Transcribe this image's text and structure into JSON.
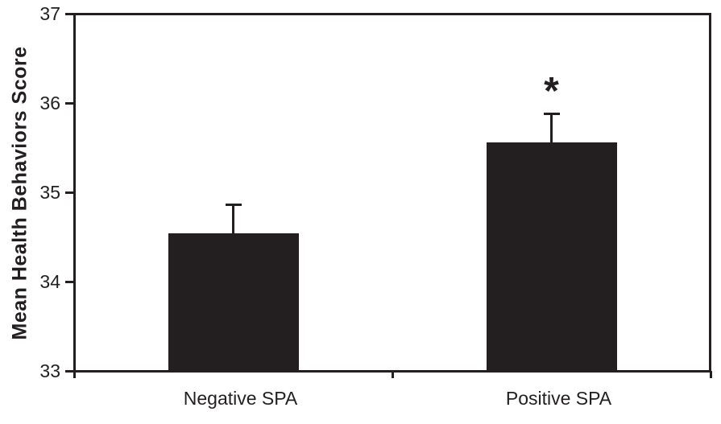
{
  "chart_data": {
    "type": "bar",
    "categories": [
      "Negative SPA",
      "Positive SPA"
    ],
    "values": [
      34.54,
      35.56
    ],
    "errors": [
      0.32,
      0.32
    ],
    "error_direction": "upper",
    "title": "",
    "xlabel": "",
    "ylabel": "Mean Health Behaviors Score",
    "ylim": [
      33,
      37
    ],
    "yticks": [
      33,
      34,
      35,
      36,
      37
    ],
    "xticks_positions": [
      "left-edge",
      "center",
      "right-edge"
    ],
    "grid": false,
    "legend": null,
    "bar_color": "#231f20",
    "axis_color": "#231f20",
    "background_color": "#ffffff",
    "annotations": [
      {
        "target_category_index": 1,
        "text": "*",
        "meaning": "significance-marker",
        "position": "above-error-bar"
      }
    ]
  }
}
